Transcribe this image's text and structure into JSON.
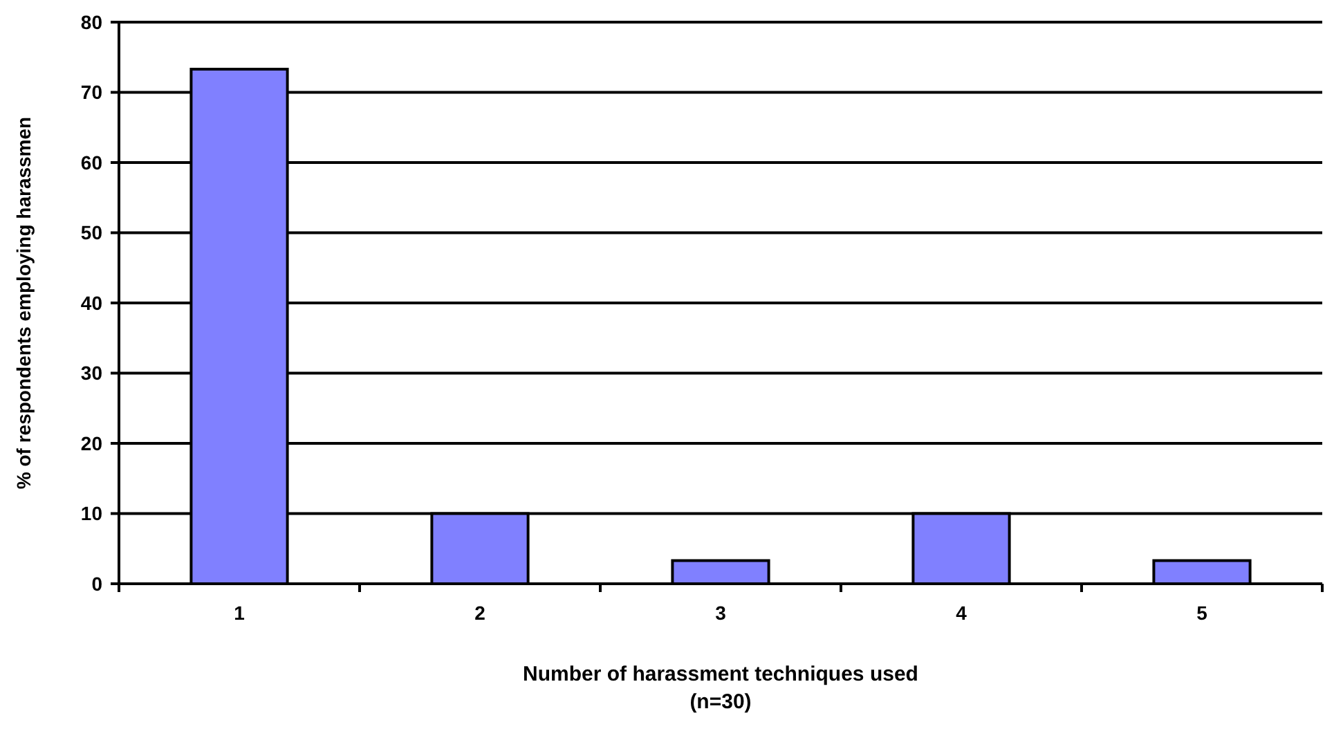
{
  "chart_data": {
    "type": "bar",
    "xlabel": "Number of harassment techniques used\n(n=30)",
    "ylabel": "% of respondents employing harassmen",
    "categories": [
      "1",
      "2",
      "3",
      "4",
      "5"
    ],
    "values": [
      73.3,
      10,
      3.3,
      10,
      3.3
    ],
    "color": "#8080ff",
    "ylim": [
      0,
      80
    ],
    "yticks": [
      0,
      10,
      20,
      30,
      40,
      50,
      60,
      70,
      80
    ],
    "grid": "y"
  }
}
